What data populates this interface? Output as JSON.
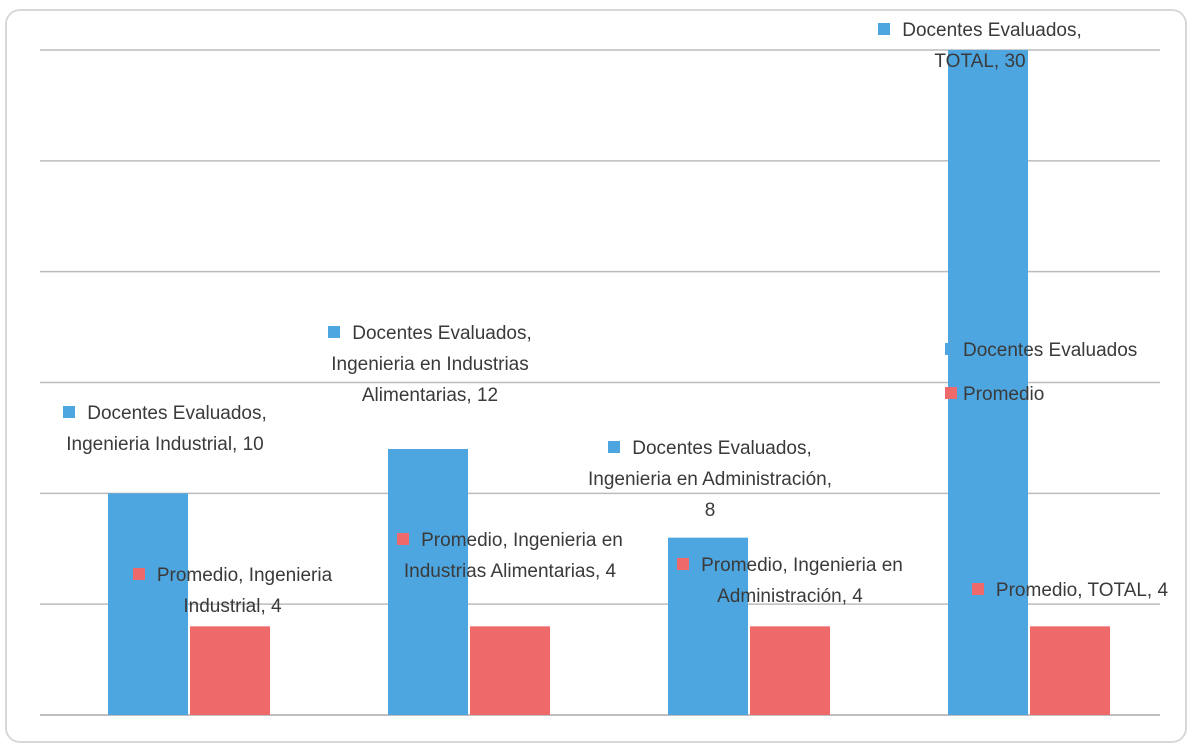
{
  "chart_data": {
    "type": "bar",
    "categories": [
      null,
      null,
      null,
      null
    ],
    "series": [
      {
        "name": "Docentes Evaluados",
        "color": "#4ea6e0",
        "values": [
          10,
          12,
          8,
          30
        ],
        "value_labels": [
          "Docentes Evaluados, Ingenieria Industrial, 10",
          "Docentes Evaluados, Ingenieria en Industrias Alimentarias, 12",
          "Docentes Evaluados, Ingenieria en Administración, 8",
          "Docentes Evaluados, TOTAL, 30"
        ]
      },
      {
        "name": "Promedio",
        "color": "#ee6a6a",
        "values": [
          4,
          4,
          4,
          4
        ],
        "value_labels": [
          "Promedio, Ingenieria Industrial, 4",
          "Promedio, Ingenieria en Industrias Alimentarias, 4",
          "Promedio, Ingenieria en Administración, 4",
          "Promedio, TOTAL, 4"
        ]
      }
    ],
    "ylim": [
      0,
      30
    ],
    "yticks": [
      0,
      5,
      10,
      15,
      20,
      25,
      30
    ],
    "grid": true,
    "legend": "right"
  }
}
